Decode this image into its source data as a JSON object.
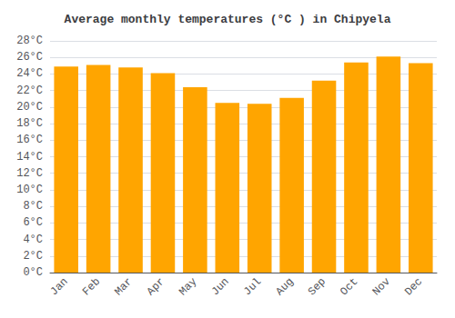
{
  "chart_data": {
    "type": "bar",
    "title": "Average monthly temperatures (°C ) in Chipyela",
    "categories": [
      "Jan",
      "Feb",
      "Mar",
      "Apr",
      "May",
      "Jun",
      "Jul",
      "Aug",
      "Sep",
      "Oct",
      "Nov",
      "Dec"
    ],
    "values": [
      24.9,
      25.1,
      24.8,
      24.1,
      22.4,
      20.5,
      20.4,
      21.1,
      23.2,
      25.4,
      26.1,
      25.3
    ],
    "color": "#FFA500",
    "ylim": [
      0,
      28
    ],
    "yticks": [
      {
        "value": 0,
        "label": "0°C"
      },
      {
        "value": 2,
        "label": "2°C"
      },
      {
        "value": 4,
        "label": "4°C"
      },
      {
        "value": 6,
        "label": "6°C"
      },
      {
        "value": 8,
        "label": "8°C"
      },
      {
        "value": 10,
        "label": "10°C"
      },
      {
        "value": 12,
        "label": "12°C"
      },
      {
        "value": 14,
        "label": "14°C"
      },
      {
        "value": 16,
        "label": "16°C"
      },
      {
        "value": 18,
        "label": "18°C"
      },
      {
        "value": 20,
        "label": "20°C"
      },
      {
        "value": 22,
        "label": "22°C"
      },
      {
        "value": 24,
        "label": "24°C"
      },
      {
        "value": 26,
        "label": "26°C"
      },
      {
        "value": 28,
        "label": "28°C"
      }
    ],
    "grid": true
  }
}
